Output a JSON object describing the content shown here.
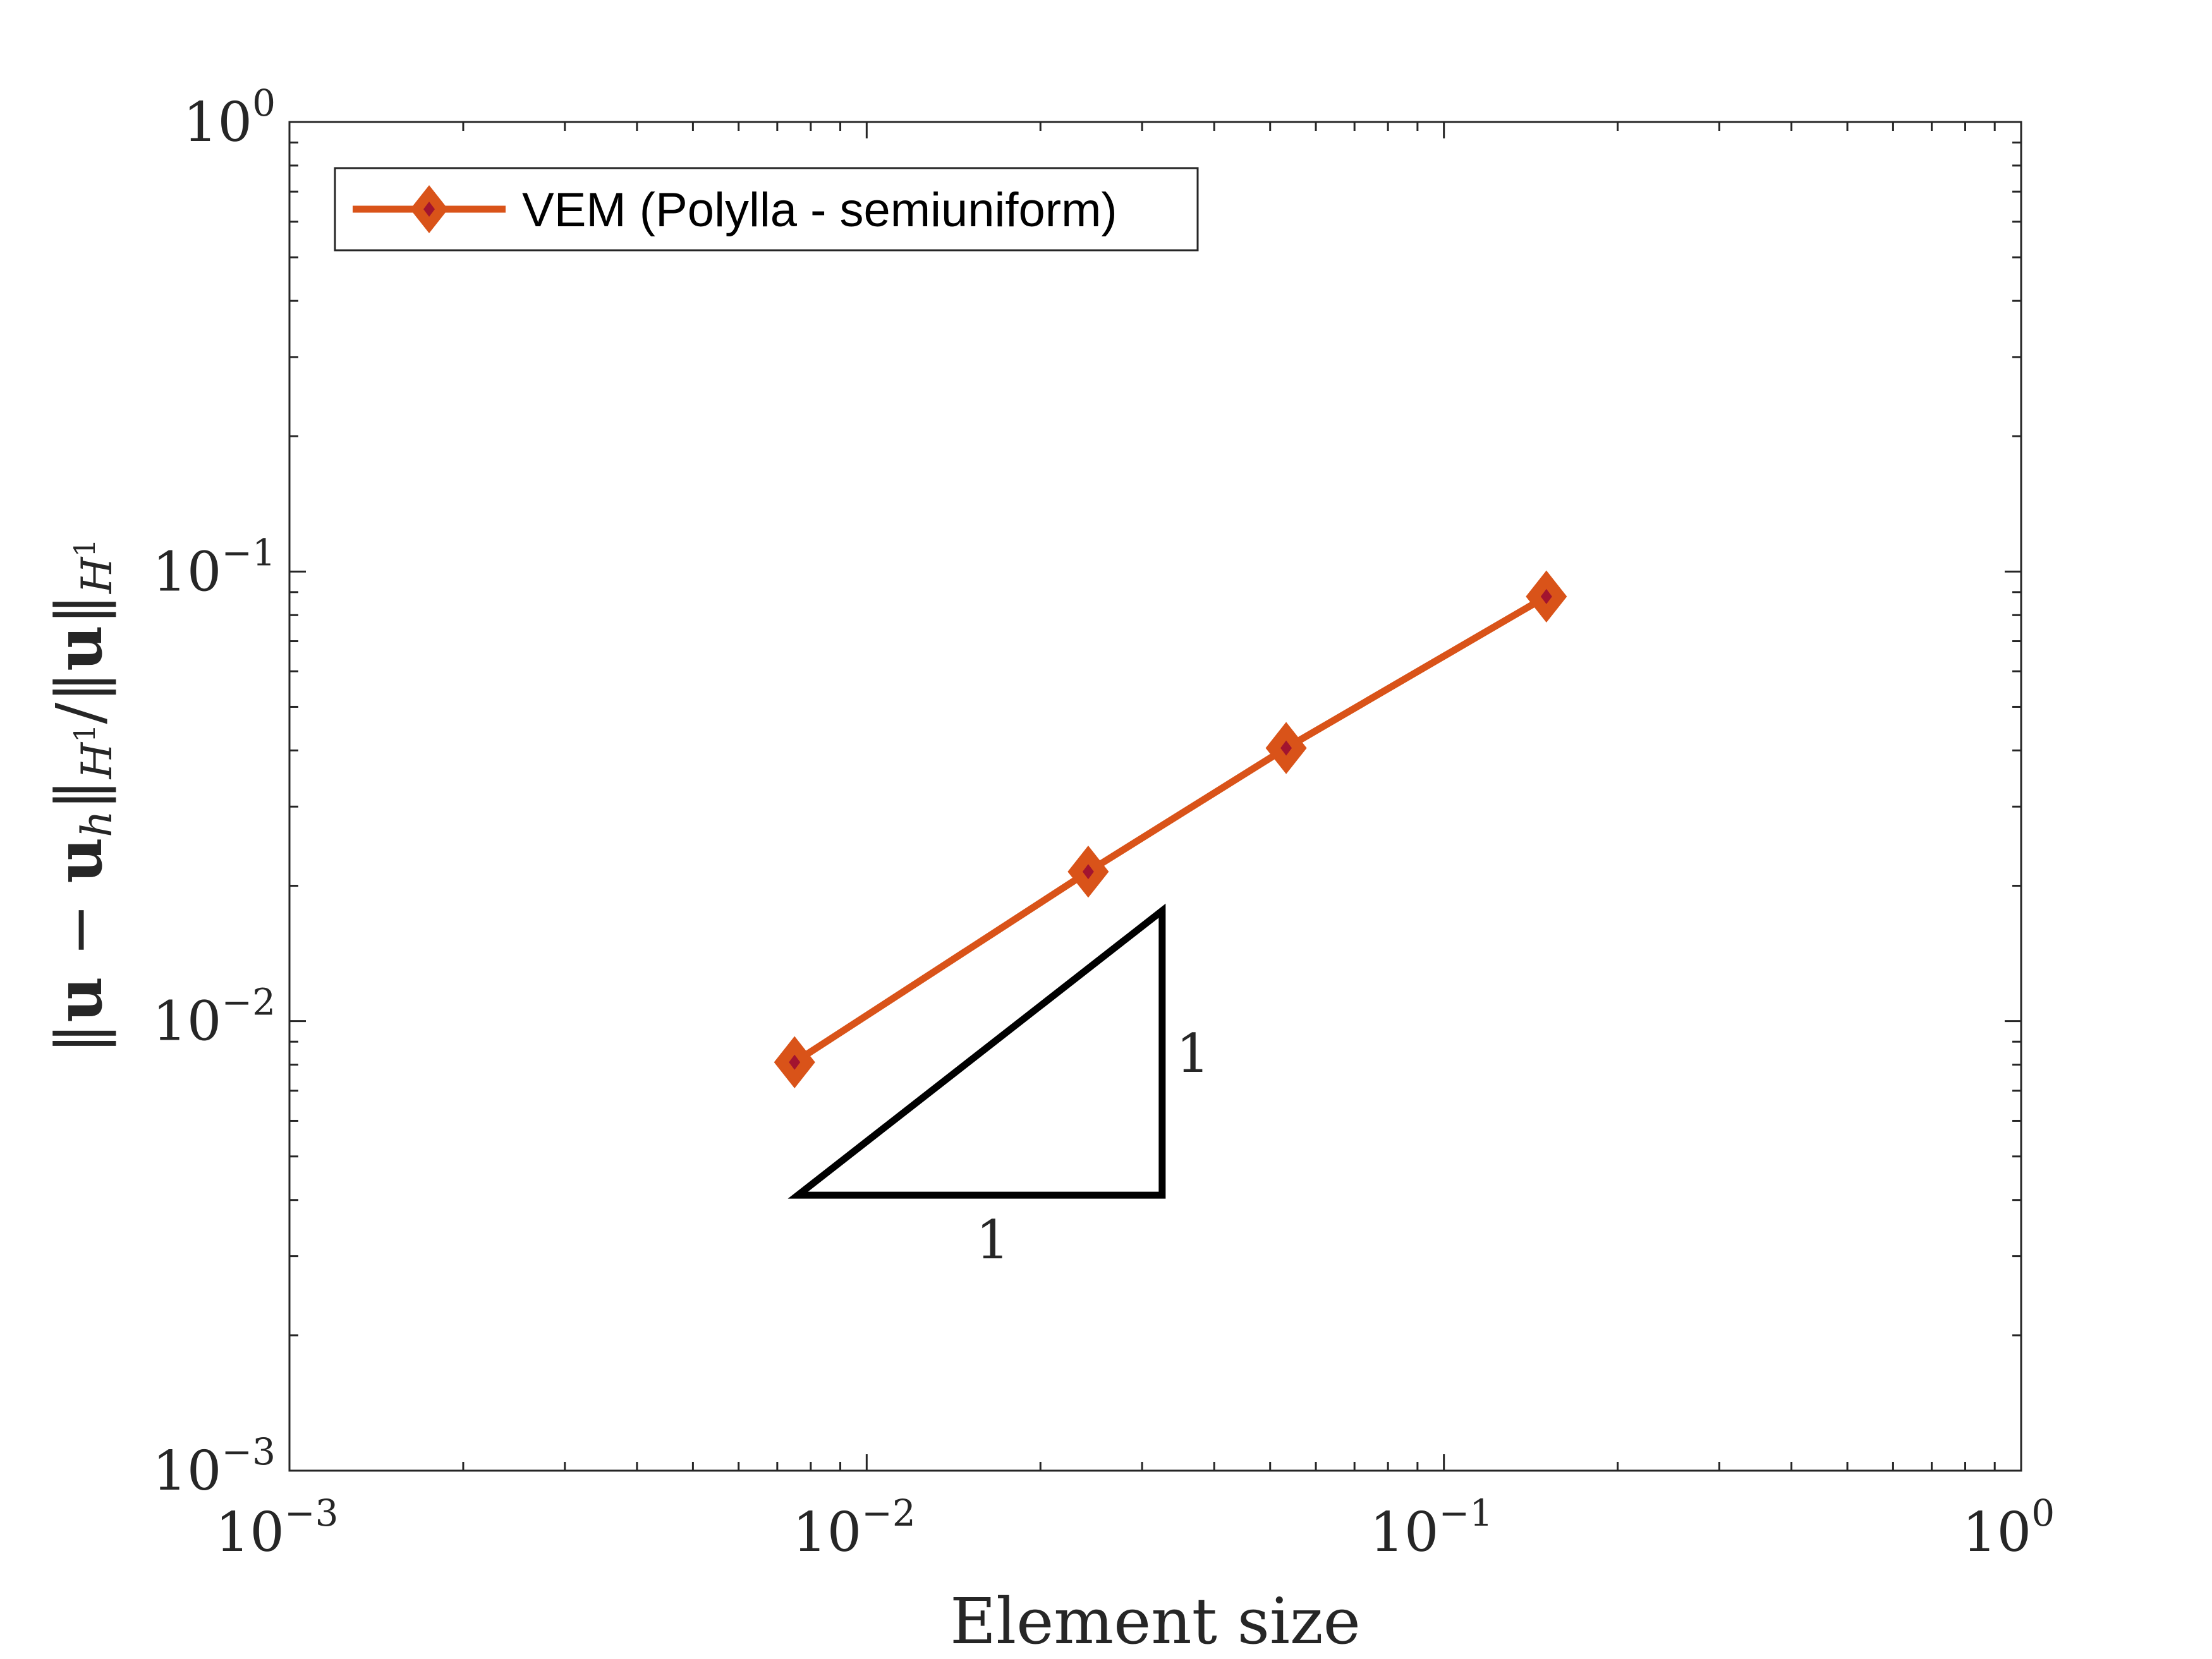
{
  "chart_data": {
    "type": "line",
    "xscale": "log",
    "yscale": "log",
    "xlim": [
      0.001,
      1
    ],
    "ylim": [
      0.001,
      1
    ],
    "xlabel": "Element size",
    "ylabel": "||u − u_h||_{H¹} / ||u||_{H¹}",
    "ylabel_parts": {
      "open": "‖",
      "u1": "u",
      "minus": " − ",
      "u2": "u",
      "sub_h": "h",
      "close1": "‖",
      "sub_H": "H",
      "sup_1": "1",
      "slash": "/",
      "open2": "‖",
      "u3": "u",
      "close2": "‖"
    },
    "xticks": [
      {
        "value": 0.001,
        "base": "10",
        "exp": "−3"
      },
      {
        "value": 0.01,
        "base": "10",
        "exp": "−2"
      },
      {
        "value": 0.1,
        "base": "10",
        "exp": "−1"
      },
      {
        "value": 1,
        "base": "10",
        "exp": "0"
      }
    ],
    "yticks": [
      {
        "value": 0.001,
        "base": "10",
        "exp": "−3"
      },
      {
        "value": 0.01,
        "base": "10",
        "exp": "−2"
      },
      {
        "value": 0.1,
        "base": "10",
        "exp": "−1"
      },
      {
        "value": 1,
        "base": "10",
        "exp": "0"
      }
    ],
    "series": [
      {
        "name": "VEM (Polylla - semiuniform)",
        "color": "#D95319",
        "marker": "diamond",
        "marker_center_color": "#A2142F",
        "x": [
          0.0075,
          0.0242,
          0.0533,
          0.1505
        ],
        "y": [
          0.0081,
          0.0215,
          0.0405,
          0.088
        ]
      }
    ],
    "legend": {
      "position": "top-left",
      "entries": [
        "VEM (Polylla - semiuniform)"
      ]
    },
    "slope_triangle": {
      "x_left": 0.0076,
      "x_right": 0.0325,
      "y_bottom": 0.0041,
      "y_top": 0.0176,
      "horizontal_label": "1",
      "vertical_label": "1",
      "color": "#000000"
    }
  }
}
